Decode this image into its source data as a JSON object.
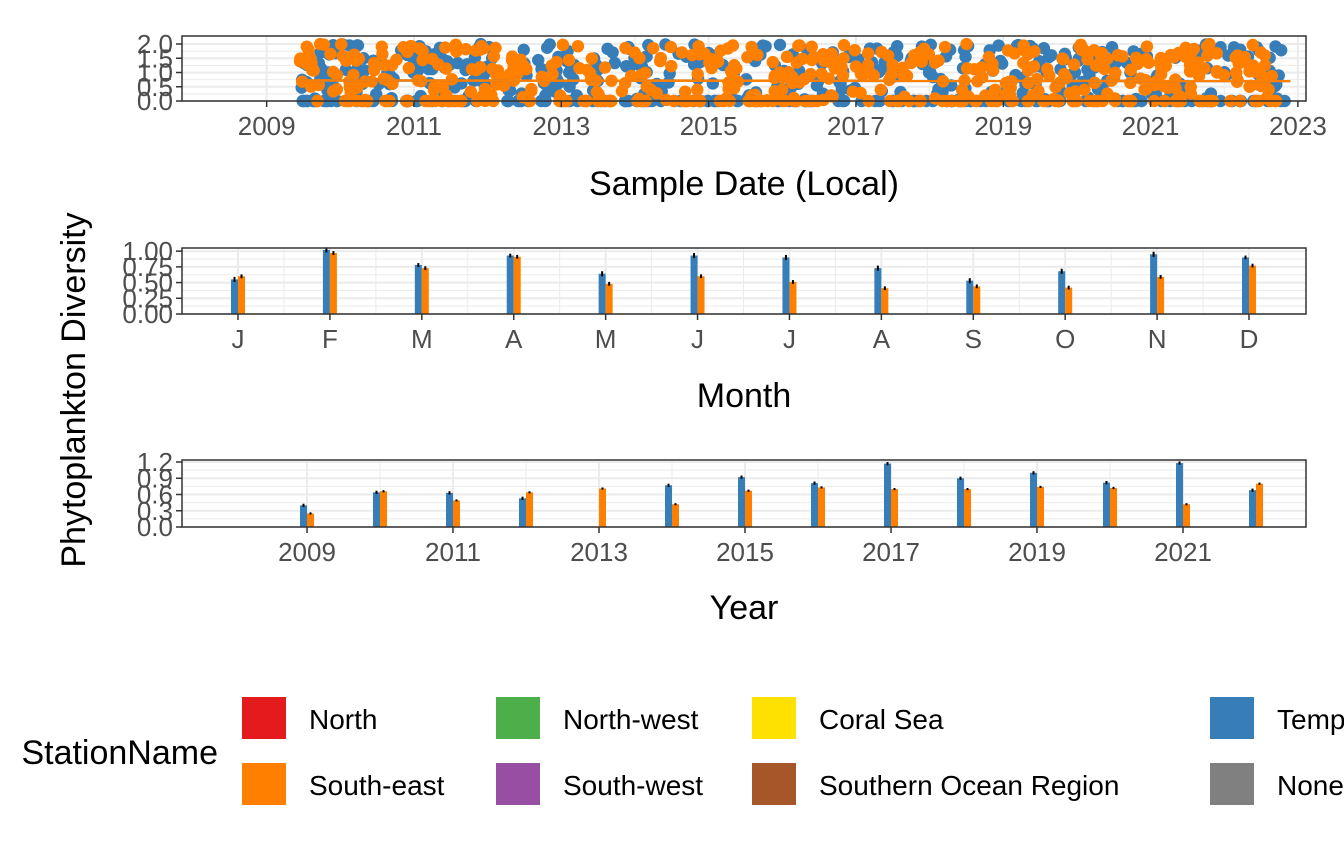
{
  "ylabel": "Phytoplankton Diversity",
  "colors": {
    "North": "#E41A1C",
    "North-west": "#4DAF4A",
    "Coral Sea": "#FFE100",
    "Temperate East": "#377EB8",
    "South-east": "#FF7F00",
    "South-west": "#984EA3",
    "Southern Ocean Region": "#A65628",
    "None": "#808080"
  },
  "legend": {
    "title": "StationName",
    "items": [
      "North",
      "North-west",
      "Coral Sea",
      "Temperate East",
      "South-east",
      "South-west",
      "Southern Ocean Region",
      "None"
    ]
  },
  "chart_data": [
    {
      "type": "scatter",
      "title": "",
      "xlabel": "Sample Date (Local)",
      "ylabel": "Phytoplankton Diversity",
      "xlim": [
        2008.0,
        2023.0
      ],
      "ylim": [
        0.0,
        2.0
      ],
      "x_ticks": [
        "2009",
        "2011",
        "2013",
        "2015",
        "2017",
        "2019",
        "2021",
        "2023"
      ],
      "y_ticks": [
        "0.0",
        "0.5",
        "1.0",
        "1.5",
        "2.0"
      ],
      "grid": true,
      "series_stats": [
        {
          "name": "Temperate East",
          "x_range": [
            2009.45,
            2022.9
          ],
          "y_typical_max": 2.0,
          "trend_line": true
        },
        {
          "name": "South-east",
          "x_range": [
            2009.45,
            2022.9
          ],
          "y_typical_max": 2.0,
          "trend_line": true
        }
      ]
    },
    {
      "type": "bar",
      "title": "",
      "xlabel": "Month",
      "ylabel": "Phytoplankton Diversity",
      "categories": [
        "J",
        "F",
        "M",
        "A",
        "M",
        "J",
        "J",
        "A",
        "S",
        "O",
        "N",
        "D"
      ],
      "ylim": [
        0.0,
        1.05
      ],
      "y_ticks": [
        "0.00",
        "0.25",
        "0.50",
        "0.75",
        "1.00"
      ],
      "grid": true,
      "series": [
        {
          "name": "Temperate East",
          "values": [
            0.55,
            1.02,
            0.78,
            0.93,
            0.64,
            0.93,
            0.9,
            0.73,
            0.53,
            0.68,
            0.95,
            0.9
          ],
          "errors": [
            0.04,
            0.04,
            0.03,
            0.03,
            0.04,
            0.04,
            0.04,
            0.04,
            0.04,
            0.04,
            0.04,
            0.03
          ]
        },
        {
          "name": "South-east",
          "values": [
            0.6,
            0.97,
            0.73,
            0.91,
            0.48,
            0.6,
            0.51,
            0.41,
            0.44,
            0.42,
            0.59,
            0.77
          ],
          "errors": [
            0.03,
            0.03,
            0.03,
            0.03,
            0.03,
            0.03,
            0.03,
            0.03,
            0.03,
            0.03,
            0.03,
            0.03
          ]
        }
      ]
    },
    {
      "type": "bar",
      "title": "",
      "xlabel": "Year",
      "ylabel": "Phytoplankton Diversity",
      "categories": [
        "2008",
        "2009",
        "2010",
        "2011",
        "2012",
        "2013",
        "2014",
        "2015",
        "2016",
        "2017",
        "2018",
        "2019",
        "2020",
        "2021",
        "2022"
      ],
      "x_ticks": [
        "2009",
        "2011",
        "2013",
        "2015",
        "2017",
        "2019",
        "2021"
      ],
      "ylim": [
        0.0,
        1.2
      ],
      "y_ticks": [
        "0.0",
        "0.3",
        "0.6",
        "0.9",
        "1.2"
      ],
      "grid": true,
      "series": [
        {
          "name": "Temperate East",
          "values": [
            null,
            0.4,
            0.64,
            0.63,
            0.53,
            null,
            0.77,
            0.92,
            0.81,
            1.17,
            0.9,
            1.0,
            0.82,
            1.18,
            0.68
          ],
          "errors": [
            null,
            0.03,
            0.03,
            0.03,
            0.03,
            null,
            0.03,
            0.03,
            0.03,
            0.03,
            0.03,
            0.03,
            0.03,
            0.03,
            0.03
          ]
        },
        {
          "name": "South-east",
          "values": [
            null,
            0.25,
            0.66,
            0.49,
            0.64,
            0.71,
            0.42,
            0.67,
            0.73,
            0.7,
            0.7,
            0.74,
            0.72,
            0.42,
            0.8
          ],
          "errors": [
            null,
            0.02,
            0.02,
            0.02,
            0.02,
            0.02,
            0.02,
            0.02,
            0.02,
            0.02,
            0.02,
            0.02,
            0.02,
            0.02,
            0.02
          ]
        }
      ]
    }
  ]
}
